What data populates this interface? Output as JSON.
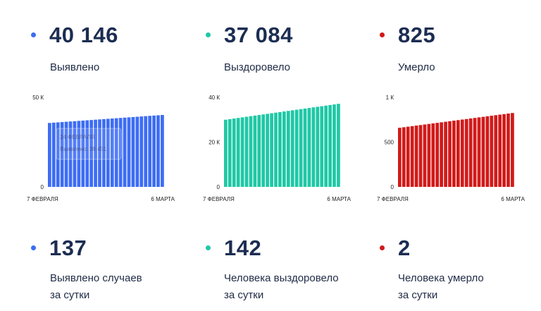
{
  "stats": [
    {
      "value": "40 146",
      "label": "Выявлено",
      "color": "#3d6df5"
    },
    {
      "value": "37 084",
      "label": "Выздоровело",
      "color": "#1fc8a6"
    },
    {
      "value": "825",
      "label": "Умерло",
      "color": "#d11a1a"
    }
  ],
  "daily": [
    {
      "value": "137",
      "line1": "Выявлено случаев",
      "line2": "за сутки",
      "color": "#3d6df5"
    },
    {
      "value": "142",
      "line1": "Человека выздоровело",
      "line2": "за сутки",
      "color": "#1fc8a6"
    },
    {
      "value": "2",
      "line1": "Человека умерло",
      "line2": "за сутки",
      "color": "#d11a1a"
    }
  ],
  "tooltip": {
    "line1": "24 ФЕВРАЛЯ",
    "line2": "Выявлено: 38 451"
  },
  "chart_data": [
    {
      "type": "bar",
      "color": "#3d6df5",
      "x_start": "7 ФЕВРАЛЯ",
      "x_end": "6 МАРТА",
      "ylim": [
        0,
        50000
      ],
      "yticks": [
        {
          "v": 0,
          "label": "0"
        },
        {
          "v": 50000,
          "label": "50 К"
        }
      ],
      "start_value": 35700,
      "end_value": 40146,
      "bars": 28
    },
    {
      "type": "bar",
      "color": "#1fc8a6",
      "x_start": "7 ФЕВРАЛЯ",
      "x_end": "6 МАРТА",
      "ylim": [
        0,
        40000
      ],
      "yticks": [
        {
          "v": 0,
          "label": "0"
        },
        {
          "v": 20000,
          "label": "20 К"
        },
        {
          "v": 40000,
          "label": "40 К"
        }
      ],
      "start_value": 30000,
      "end_value": 37084,
      "bars": 28
    },
    {
      "type": "bar",
      "color": "#d11a1a",
      "x_start": "7 ФЕВРАЛЯ",
      "x_end": "6 МАРТА",
      "ylim": [
        0,
        1000
      ],
      "yticks": [
        {
          "v": 0,
          "label": "0"
        },
        {
          "v": 500,
          "label": "500"
        },
        {
          "v": 1000,
          "label": "1 К"
        }
      ],
      "start_value": 660,
      "end_value": 825,
      "bars": 28
    }
  ]
}
